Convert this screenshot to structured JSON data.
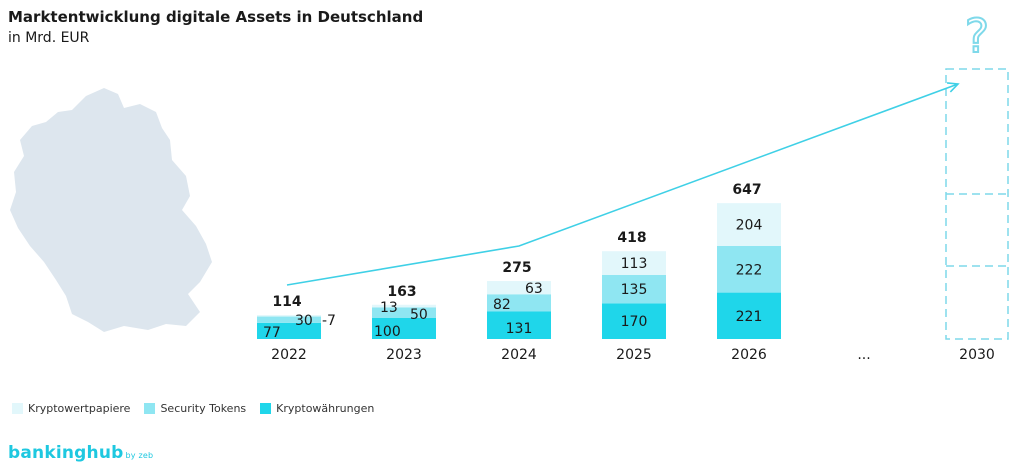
{
  "colors": {
    "kryptowertpapiere": "#e2f7fb",
    "security_tokens": "#8fe6f2",
    "kryptowaehrungen": "#1fd6ea",
    "trend": "#3fd0e6",
    "map": "#dde6ee",
    "dashed": "#7fd9ea"
  },
  "chart_data": {
    "type": "bar",
    "stacked": true,
    "title": "Marktentwicklung digitale Assets in Deutschland",
    "subtitle": "in Mrd. EUR",
    "categories": [
      "2022",
      "2023",
      "2024",
      "2025",
      "2026"
    ],
    "ellipsis_label": "...",
    "future_category": "2030",
    "future_value_label": "?",
    "series": [
      {
        "name": "Kryptowährungen",
        "values": [
          77,
          100,
          131,
          170,
          221
        ]
      },
      {
        "name": "Security Tokens",
        "values": [
          30,
          50,
          82,
          135,
          222
        ]
      },
      {
        "name": "Kryptowertpapiere",
        "values": [
          7,
          13,
          63,
          113,
          204
        ]
      }
    ],
    "totals": [
      114,
      163,
      275,
      418,
      647
    ],
    "legend_position": "bottom-left"
  },
  "legend": {
    "items": [
      {
        "label": "Kryptowertpapiere",
        "color": "#e2f7fb"
      },
      {
        "label": "Security Tokens",
        "color": "#8fe6f2"
      },
      {
        "label": "Kryptowährungen",
        "color": "#1fd6ea"
      }
    ]
  },
  "brand": {
    "name": "bankinghub",
    "suffix": "by zeb"
  }
}
